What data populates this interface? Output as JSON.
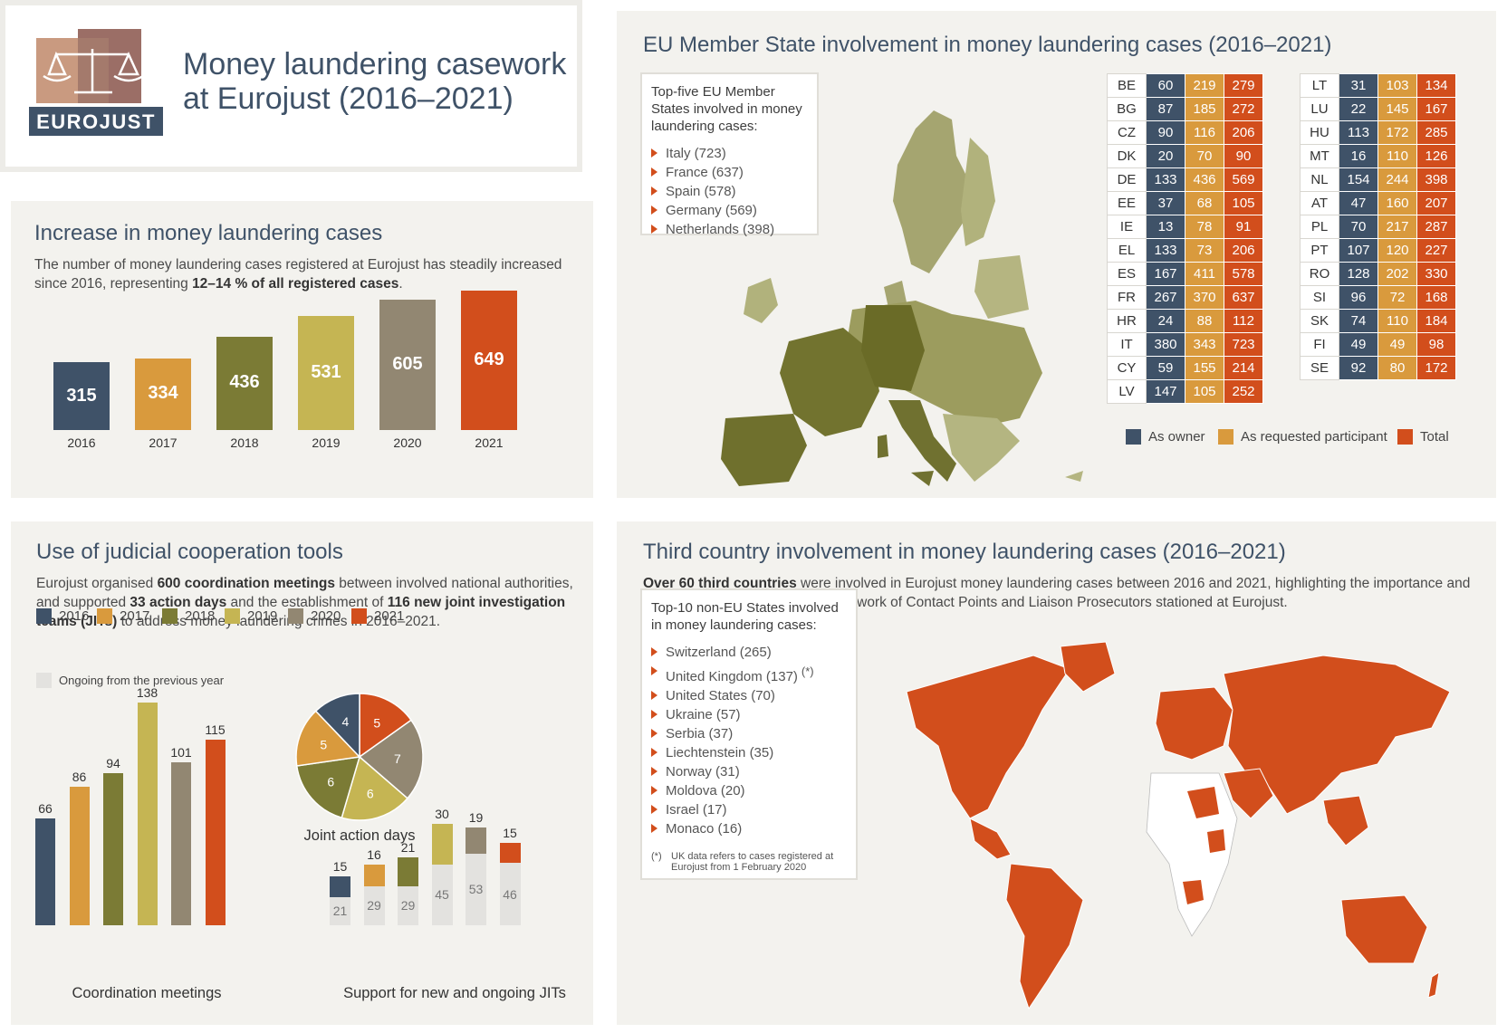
{
  "header": {
    "logo_text": "EUROJUST",
    "title_line1": "Money laundering casework",
    "title_line2": "at Eurojust (2016–2021)"
  },
  "colors": {
    "y2016": "#3f5268",
    "y2017": "#d99a3d",
    "y2018": "#7b7b35",
    "y2019": "#c5b553",
    "y2020": "#928772",
    "y2021": "#d24e1c",
    "ongoing": "#e3e2df"
  },
  "increase": {
    "title": "Increase in money laundering cases",
    "text_a": "The number of money laundering cases registered at Eurojust has steadily increased since 2016, representing ",
    "text_b": "12–14 % of all registered cases",
    "text_c": "."
  },
  "member_states": {
    "title": "EU Member State involvement in money laundering cases (2016–2021)",
    "box_title": "Top-five EU Member States involved in money laundering cases:",
    "top": [
      "Italy (723)",
      "France (637)",
      "Spain (578)",
      "Germany (569)",
      "Netherlands (398)"
    ],
    "legend": [
      "As owner",
      "As requested participant",
      "Total"
    ],
    "table_left": [
      [
        "BE",
        "60",
        "219",
        "279"
      ],
      [
        "BG",
        "87",
        "185",
        "272"
      ],
      [
        "CZ",
        "90",
        "116",
        "206"
      ],
      [
        "DK",
        "20",
        "70",
        "90"
      ],
      [
        "DE",
        "133",
        "436",
        "569"
      ],
      [
        "EE",
        "37",
        "68",
        "105"
      ],
      [
        "IE",
        "13",
        "78",
        "91"
      ],
      [
        "EL",
        "133",
        "73",
        "206"
      ],
      [
        "ES",
        "167",
        "411",
        "578"
      ],
      [
        "FR",
        "267",
        "370",
        "637"
      ],
      [
        "HR",
        "24",
        "88",
        "112"
      ],
      [
        "IT",
        "380",
        "343",
        "723"
      ],
      [
        "CY",
        "59",
        "155",
        "214"
      ],
      [
        "LV",
        "147",
        "105",
        "252"
      ]
    ],
    "table_right": [
      [
        "LT",
        "31",
        "103",
        "134"
      ],
      [
        "LU",
        "22",
        "145",
        "167"
      ],
      [
        "HU",
        "113",
        "172",
        "285"
      ],
      [
        "MT",
        "16",
        "110",
        "126"
      ],
      [
        "NL",
        "154",
        "244",
        "398"
      ],
      [
        "AT",
        "47",
        "160",
        "207"
      ],
      [
        "PL",
        "70",
        "217",
        "287"
      ],
      [
        "PT",
        "107",
        "120",
        "227"
      ],
      [
        "RO",
        "128",
        "202",
        "330"
      ],
      [
        "SI",
        "96",
        "72",
        "168"
      ],
      [
        "SK",
        "74",
        "110",
        "184"
      ],
      [
        "FI",
        "49",
        "49",
        "98"
      ],
      [
        "SE",
        "92",
        "80",
        "172"
      ]
    ]
  },
  "tools": {
    "title": "Use of judicial cooperation tools",
    "t1": "Eurojust organised ",
    "b1": "600 coordination meetings",
    "t2": " between involved national authorities, and supported ",
    "b2": "33 action days",
    "t3": " and the establishment of ",
    "b3": "116 new joint investigation teams (JITs)",
    "t4": " to address money laundering crimes in 2016–2021.",
    "legend_years": [
      "2016",
      "2017",
      "2018",
      "2019",
      "2020",
      "2021"
    ],
    "legend_ongoing": "Ongoing from the previous year",
    "coord_label": "Coordination meetings",
    "jad_label": "Joint action days",
    "jit_label": "Support for new and ongoing JITs"
  },
  "third": {
    "title": "Third country involvement in money laundering cases (2016–2021)",
    "b1": "Over 60 third countries",
    "t1": " were involved in Eurojust money laundering cases between 2016 and 2021, highlighting the importance and added value of having a global network of Contact Points and Liaison Prosecutors stationed at Eurojust.",
    "box_title": "Top-10 non-EU States involved in money laundering cases:",
    "top": [
      "Switzerland (265)",
      "United Kingdom (137)",
      "United States (70)",
      "Ukraine (57)",
      "Serbia (37)",
      "Liechtenstein (35)",
      "Norway (31)",
      "Moldova (20)",
      "Israel (17)",
      "Monaco (16)"
    ],
    "uk_mark": "(*)",
    "footnote_mark": "(*)",
    "footnote": "UK data refers to cases registered at Eurojust from 1 February 2020"
  },
  "chart_data": [
    {
      "type": "bar",
      "title": "Increase in money laundering cases",
      "categories": [
        "2016",
        "2017",
        "2018",
        "2019",
        "2020",
        "2021"
      ],
      "values": [
        315,
        334,
        436,
        531,
        605,
        649
      ]
    },
    {
      "type": "bar",
      "title": "Coordination meetings",
      "categories": [
        "2016",
        "2017",
        "2018",
        "2019",
        "2020",
        "2021"
      ],
      "values": [
        66,
        86,
        94,
        138,
        101,
        115
      ]
    },
    {
      "type": "pie",
      "title": "Joint action days",
      "categories": [
        "2016",
        "2017",
        "2018",
        "2019",
        "2020",
        "2021"
      ],
      "values": [
        4,
        5,
        6,
        6,
        7,
        5
      ]
    },
    {
      "type": "bar",
      "title": "Support for new and ongoing JITs",
      "categories": [
        "2016",
        "2017",
        "2018",
        "2019",
        "2020",
        "2021"
      ],
      "series": [
        {
          "name": "Ongoing from the previous year",
          "values": [
            21,
            29,
            29,
            45,
            53,
            46
          ]
        },
        {
          "name": "New",
          "values": [
            15,
            16,
            21,
            30,
            19,
            15
          ]
        }
      ]
    }
  ]
}
